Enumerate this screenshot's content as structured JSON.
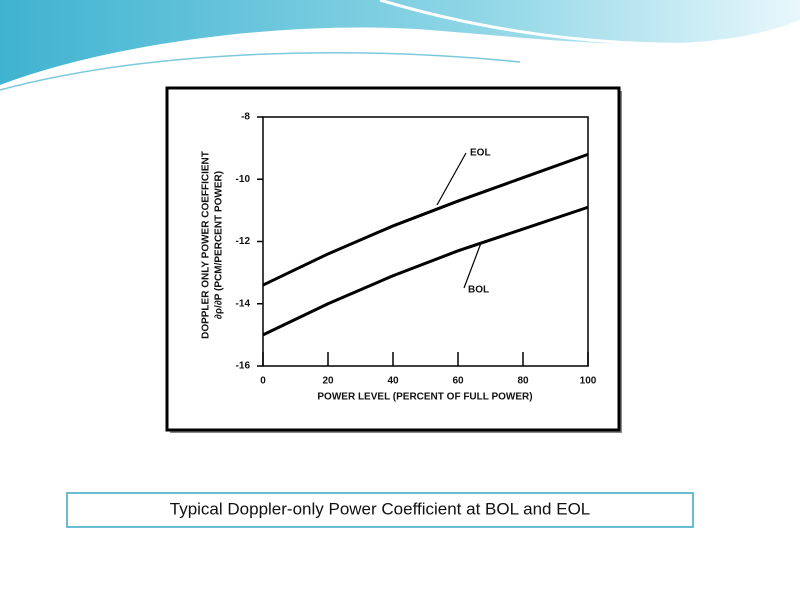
{
  "chart_data": {
    "type": "line",
    "y_label": [
      "DOPPLER ONLY POWER COEFFICIENT",
      "∂ρ/∂P (PCM/PERCENT POWER)"
    ],
    "x_label": "POWER LEVEL (PERCENT OF FULL POWER)",
    "x": [
      0,
      20,
      40,
      60,
      80,
      100
    ],
    "series": [
      {
        "name": "EOL",
        "color": "#000000",
        "values": [
          -13.4,
          -12.4,
          -11.5,
          -10.7,
          -9.95,
          -9.2
        ]
      },
      {
        "name": "BOL",
        "color": "#000000",
        "values": [
          -15.0,
          -14.0,
          -13.1,
          -12.3,
          -11.6,
          -10.9
        ]
      }
    ],
    "xlim": [
      0,
      100
    ],
    "xticks": [
      0,
      20,
      40,
      60,
      80,
      100
    ],
    "ylim": [
      -16,
      -8
    ],
    "yticks": [
      -16,
      -14,
      -12,
      -10,
      -8
    ],
    "grid": false
  },
  "caption": "Typical Doppler-only Power Coefficient at BOL and EOL"
}
